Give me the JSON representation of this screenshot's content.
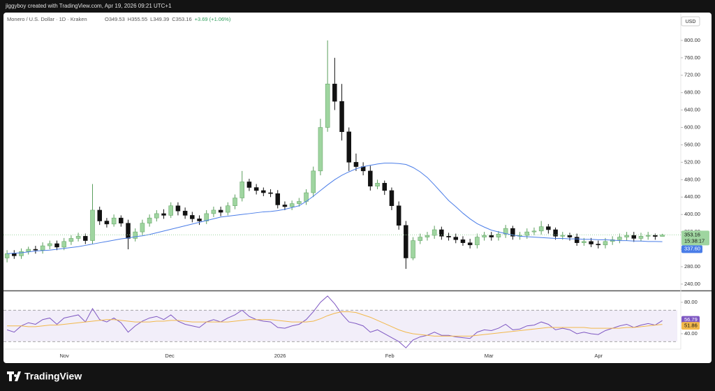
{
  "header": {
    "text": "jiggyboy created with TradingView.com, Apr 19, 2026 09:21 UTC+1"
  },
  "footer": {
    "brand": "TradingView"
  },
  "chart_data": [
    {
      "type": "candlestick",
      "title": "Monero / U.S. Dollar · 1D · Kraken",
      "legend_values": [
        "O349.53",
        "H355.55",
        "L349.39",
        "C353.16",
        "+3.69 (+1.06%)"
      ],
      "currency": "USD",
      "up_color": "#9fd5a0",
      "down_color": "#121212",
      "open": [
        300,
        310,
        305,
        315,
        320,
        318,
        328,
        333,
        325,
        338,
        345,
        350,
        340,
        410,
        385,
        378,
        392,
        380,
        345,
        360,
        380,
        392,
        402,
        398,
        420,
        408,
        398,
        390,
        385,
        402,
        410,
        405,
        420,
        438,
        475,
        462,
        455,
        450,
        448,
        422,
        418,
        425,
        430,
        450,
        500,
        600,
        700,
        660,
        590,
        520,
        510,
        500,
        465,
        472,
        455,
        420,
        375,
        300,
        340,
        348,
        352,
        365,
        350,
        348,
        342,
        335,
        330,
        348,
        352,
        348,
        355,
        368,
        350,
        352,
        360,
        362,
        372,
        365,
        350,
        352,
        348,
        335,
        338,
        332,
        330,
        338,
        342,
        348,
        352,
        345,
        350,
        352,
        349.53
      ],
      "high": [
        318,
        318,
        322,
        326,
        328,
        336,
        340,
        340,
        346,
        352,
        358,
        356,
        470,
        418,
        392,
        400,
        398,
        388,
        368,
        388,
        400,
        410,
        412,
        428,
        428,
        416,
        406,
        398,
        410,
        418,
        418,
        428,
        446,
        500,
        482,
        470,
        462,
        458,
        456,
        430,
        432,
        438,
        458,
        510,
        620,
        800,
        760,
        700,
        600,
        540,
        520,
        512,
        480,
        478,
        462,
        430,
        385,
        348,
        356,
        360,
        374,
        372,
        358,
        356,
        350,
        344,
        356,
        360,
        360,
        362,
        376,
        374,
        360,
        368,
        370,
        385,
        378,
        370,
        360,
        358,
        356,
        346,
        346,
        340,
        346,
        350,
        356,
        360,
        360,
        358,
        360,
        356,
        355.55
      ],
      "low": [
        290,
        298,
        298,
        308,
        310,
        310,
        320,
        318,
        318,
        330,
        338,
        332,
        332,
        376,
        370,
        372,
        372,
        320,
        338,
        352,
        372,
        384,
        390,
        392,
        398,
        390,
        382,
        376,
        378,
        394,
        396,
        398,
        412,
        430,
        454,
        446,
        442,
        440,
        414,
        410,
        410,
        418,
        422,
        440,
        490,
        590,
        640,
        570,
        500,
        500,
        490,
        455,
        458,
        445,
        410,
        365,
        275,
        295,
        332,
        340,
        344,
        342,
        340,
        334,
        328,
        322,
        322,
        340,
        340,
        340,
        346,
        342,
        342,
        344,
        352,
        354,
        356,
        342,
        342,
        340,
        328,
        328,
        325,
        322,
        322,
        330,
        334,
        340,
        337,
        338,
        342,
        342,
        349.39
      ],
      "close": [
        310,
        305,
        315,
        320,
        318,
        328,
        333,
        325,
        338,
        345,
        350,
        340,
        410,
        385,
        378,
        392,
        380,
        345,
        360,
        380,
        392,
        402,
        398,
        420,
        408,
        398,
        390,
        385,
        402,
        410,
        405,
        420,
        438,
        475,
        462,
        455,
        450,
        448,
        422,
        418,
        425,
        430,
        450,
        500,
        600,
        700,
        660,
        590,
        520,
        510,
        500,
        465,
        472,
        455,
        420,
        375,
        300,
        340,
        348,
        352,
        365,
        350,
        348,
        342,
        335,
        330,
        348,
        352,
        348,
        355,
        368,
        350,
        352,
        360,
        362,
        372,
        365,
        350,
        352,
        348,
        335,
        338,
        332,
        330,
        338,
        342,
        348,
        352,
        345,
        350,
        352,
        349.53,
        353.16
      ],
      "ma": {
        "color": "#4a7de8",
        "values": [
          310,
          311,
          312,
          314,
          316,
          317,
          318,
          320,
          322,
          324,
          326,
          329,
          332,
          335,
          338,
          341,
          344,
          346,
          349,
          351,
          354,
          358,
          362,
          366,
          370,
          374,
          378,
          382,
          386,
          390,
          394,
          396,
          398,
          400,
          402,
          404,
          406,
          407,
          409,
          412,
          416,
          420,
          430,
          442,
          455,
          468,
          480,
          490,
          498,
          505,
          510,
          513,
          516,
          518,
          518,
          517,
          515,
          508,
          498,
          485,
          468,
          450,
          432,
          418,
          403,
          390,
          379,
          371,
          364,
          360,
          356,
          353,
          350,
          349,
          348,
          347,
          346,
          345,
          345,
          344,
          344,
          343,
          343,
          342,
          342,
          341,
          340,
          340,
          339,
          339,
          338,
          338,
          337.6
        ]
      },
      "price_label": {
        "value": 353.16,
        "label": "353.16"
      },
      "countdown": "15:38:17",
      "ma_label": {
        "value": 337.6,
        "label": "337.60"
      },
      "ylim": [
        227,
        864
      ],
      "yticks": [
        {
          "value": 240,
          "label": "240.00"
        },
        {
          "value": 280,
          "label": "280.00"
        },
        {
          "value": 320,
          "label": "320.00"
        },
        {
          "value": 360,
          "label": "360.00"
        },
        {
          "value": 400,
          "label": "400.00"
        },
        {
          "value": 440,
          "label": "440.00"
        },
        {
          "value": 480,
          "label": "480.00"
        },
        {
          "value": 520,
          "label": "520.00"
        },
        {
          "value": 560,
          "label": "560.00"
        },
        {
          "value": 600,
          "label": "600.00"
        },
        {
          "value": 640,
          "label": "640.00"
        },
        {
          "value": 680,
          "label": "680.00"
        },
        {
          "value": 720,
          "label": "720.00"
        },
        {
          "value": 760,
          "label": "760.00"
        },
        {
          "value": 800,
          "label": "800.00"
        }
      ],
      "xlim": [
        -0.5,
        94.1
      ],
      "xticks": [
        {
          "value": 8.04,
          "label": "Nov"
        },
        {
          "value": 22.84,
          "label": "Dec"
        },
        {
          "value": 38.33,
          "label": "2026"
        },
        {
          "value": 53.73,
          "label": "Feb"
        },
        {
          "value": 67.65,
          "label": "Mar"
        },
        {
          "value": 83.04,
          "label": "Apr"
        }
      ]
    },
    {
      "type": "line",
      "series": [
        {
          "color": "#7e57c2",
          "values": [
            45,
            42,
            50,
            54,
            52,
            58,
            60,
            52,
            60,
            62,
            64,
            55,
            72,
            58,
            55,
            60,
            54,
            42,
            50,
            56,
            60,
            62,
            58,
            64,
            56,
            52,
            50,
            48,
            55,
            58,
            55,
            60,
            64,
            70,
            62,
            58,
            56,
            55,
            48,
            47,
            50,
            52,
            58,
            68,
            80,
            88,
            78,
            65,
            55,
            53,
            50,
            42,
            45,
            40,
            35,
            30,
            22,
            32,
            36,
            38,
            42,
            38,
            38,
            36,
            35,
            34,
            42,
            45,
            44,
            47,
            52,
            45,
            46,
            50,
            51,
            55,
            52,
            45,
            47,
            45,
            40,
            42,
            40,
            39,
            44,
            47,
            50,
            52,
            48,
            51,
            53,
            51,
            56.79
          ]
        },
        {
          "color": "#f2b84b",
          "values": [
            50,
            50,
            50,
            49,
            49,
            50,
            51,
            51,
            52,
            53,
            54,
            55,
            56,
            57,
            58,
            58,
            57,
            56,
            55,
            55,
            55,
            56,
            56,
            57,
            57,
            56,
            55,
            55,
            55,
            55,
            55,
            55,
            56,
            57,
            58,
            58,
            58,
            58,
            57,
            56,
            55,
            55,
            55,
            56,
            59,
            63,
            66,
            68,
            68,
            67,
            64,
            61,
            57,
            53,
            49,
            45,
            42,
            40,
            39,
            38,
            37,
            37,
            37,
            37,
            37,
            37,
            38,
            39,
            40,
            41,
            42,
            43,
            44,
            45,
            46,
            47,
            48,
            48,
            48,
            48,
            48,
            48,
            47,
            47,
            47,
            47,
            47,
            48,
            48,
            49,
            50,
            51,
            51.86
          ]
        }
      ],
      "last_labels": [
        {
          "value": 56.79,
          "label": "56.79"
        },
        {
          "value": 51.86,
          "label": "51.86"
        }
      ],
      "bands": [
        70,
        30
      ],
      "ylim": [
        22.2,
        93.3
      ],
      "yticks": [
        {
          "value": 80,
          "label": "80.00"
        },
        {
          "value": 40,
          "label": "40.00"
        }
      ],
      "xlim": [
        -0.5,
        94.1
      ]
    }
  ]
}
